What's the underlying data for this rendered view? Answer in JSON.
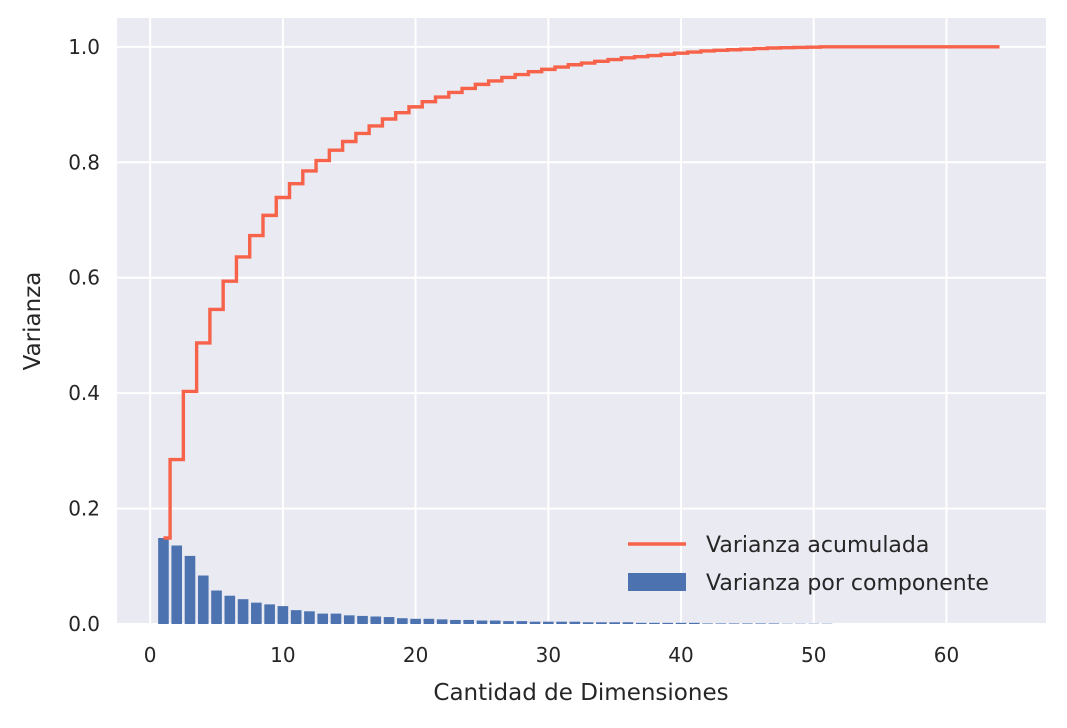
{
  "chart_data": {
    "type": "bar",
    "title": "",
    "xlabel": "Cantidad de Dimensiones",
    "ylabel": "Varianza",
    "xlim": [
      -2.5,
      67.5
    ],
    "ylim": [
      0,
      1.05
    ],
    "xticks": [
      0,
      10,
      20,
      30,
      40,
      50,
      60
    ],
    "xtick_labels": [
      "0",
      "10",
      "20",
      "30",
      "40",
      "50",
      "60"
    ],
    "yticks": [
      0.0,
      0.2,
      0.4,
      0.6,
      0.8,
      1.0
    ],
    "ytick_labels": [
      "0.0",
      "0.2",
      "0.4",
      "0.6",
      "0.8",
      "1.0"
    ],
    "grid": true,
    "legend_position": "bottom-right",
    "colors": {
      "background": "#eaeaf2",
      "grid": "#ffffff",
      "bar": "#4c72b0",
      "step": "#f7634a"
    },
    "series": [
      {
        "name": "Varianza acumulada",
        "type": "step",
        "x": [
          1,
          2,
          3,
          4,
          5,
          6,
          7,
          8,
          9,
          10,
          11,
          12,
          13,
          14,
          15,
          16,
          17,
          18,
          19,
          20,
          21,
          22,
          23,
          24,
          25,
          26,
          27,
          28,
          29,
          30,
          31,
          32,
          33,
          34,
          35,
          36,
          37,
          38,
          39,
          40,
          41,
          42,
          43,
          44,
          45,
          46,
          47,
          48,
          49,
          50,
          51,
          52,
          53,
          54,
          55,
          56,
          57,
          58,
          59,
          60,
          61,
          62,
          63,
          64
        ],
        "values": [
          0.149,
          0.285,
          0.403,
          0.487,
          0.545,
          0.594,
          0.636,
          0.673,
          0.708,
          0.739,
          0.763,
          0.785,
          0.803,
          0.821,
          0.836,
          0.85,
          0.863,
          0.875,
          0.886,
          0.896,
          0.905,
          0.913,
          0.921,
          0.928,
          0.935,
          0.941,
          0.947,
          0.952,
          0.957,
          0.961,
          0.965,
          0.969,
          0.972,
          0.975,
          0.978,
          0.981,
          0.983,
          0.985,
          0.987,
          0.989,
          0.991,
          0.993,
          0.994,
          0.995,
          0.996,
          0.997,
          0.998,
          0.9985,
          0.999,
          0.9995,
          1.0,
          1.0,
          1.0,
          1.0,
          1.0,
          1.0,
          1.0,
          1.0,
          1.0,
          1.0,
          1.0,
          1.0,
          1.0,
          1.0
        ]
      },
      {
        "name": "Varianza por componente",
        "type": "bar",
        "x": [
          1,
          2,
          3,
          4,
          5,
          6,
          7,
          8,
          9,
          10,
          11,
          12,
          13,
          14,
          15,
          16,
          17,
          18,
          19,
          20,
          21,
          22,
          23,
          24,
          25,
          26,
          27,
          28,
          29,
          30,
          31,
          32,
          33,
          34,
          35,
          36,
          37,
          38,
          39,
          40,
          41,
          42,
          43,
          44,
          45,
          46,
          47,
          48,
          49,
          50,
          51,
          52,
          53,
          54,
          55,
          56,
          57,
          58,
          59,
          60,
          61,
          62,
          63,
          64
        ],
        "values": [
          0.149,
          0.136,
          0.118,
          0.084,
          0.058,
          0.049,
          0.043,
          0.037,
          0.034,
          0.031,
          0.024,
          0.022,
          0.018,
          0.018,
          0.015,
          0.014,
          0.013,
          0.012,
          0.01,
          0.009,
          0.009,
          0.008,
          0.007,
          0.007,
          0.006,
          0.006,
          0.005,
          0.005,
          0.004,
          0.004,
          0.004,
          0.004,
          0.003,
          0.003,
          0.003,
          0.003,
          0.002,
          0.002,
          0.002,
          0.002,
          0.002,
          0.001,
          0.001,
          0.001,
          0.001,
          0.001,
          0.001,
          0.0005,
          0.0005,
          0.0005,
          0.0005,
          0,
          0,
          0,
          0,
          0,
          0,
          0,
          0,
          0,
          0,
          0,
          0,
          0
        ]
      }
    ]
  }
}
